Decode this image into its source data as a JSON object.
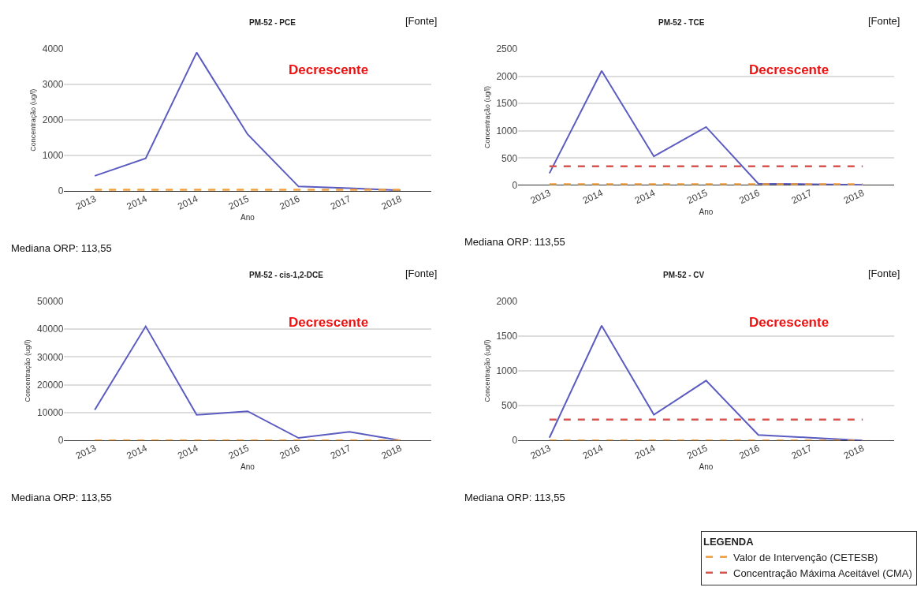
{
  "chart_data": [
    {
      "type": "line",
      "title": "PM-52 - PCE",
      "xlabel": "Ano",
      "ylabel": "Concentração (ug/l)",
      "categories": [
        "2013",
        "2014",
        "2014",
        "2015",
        "2016",
        "2017",
        "2018"
      ],
      "ylim": [
        0,
        4000
      ],
      "yticks": [
        0,
        1000,
        2000,
        3000,
        4000
      ],
      "grid": "y",
      "legend": false,
      "line_style": "solid",
      "marker": "none",
      "series": [
        {
          "color": "#5b5bc2",
          "values": [
            430,
            920,
            3900,
            1600,
            130,
            80,
            20
          ]
        },
        {
          "color": "#f0a040",
          "values": [
            40,
            40,
            40,
            40,
            40,
            40,
            40
          ],
          "line_style": "dashed"
        }
      ],
      "annotations": [
        "[Fonte]",
        "Decrescente",
        "Mediana ORP: 113,55"
      ]
    },
    {
      "type": "line",
      "title": "PM-52 - TCE",
      "xlabel": "Ano",
      "ylabel": "Concentração (ug/l)",
      "categories": [
        "2013",
        "2014",
        "2014",
        "2015",
        "2016",
        "2017",
        "2018"
      ],
      "ylim": [
        0,
        2500
      ],
      "yticks": [
        0,
        500,
        1000,
        1500,
        2000,
        2500
      ],
      "grid": "y",
      "legend": false,
      "line_style": "solid",
      "marker": "none",
      "series": [
        {
          "color": "#5b5bc2",
          "values": [
            220,
            2100,
            530,
            1070,
            30,
            20,
            10
          ]
        },
        {
          "color": "#f0a040",
          "values": [
            20,
            20,
            20,
            20,
            20,
            20,
            20
          ],
          "line_style": "dashed"
        },
        {
          "color": "#d9534f",
          "values": [
            350,
            350,
            350,
            350,
            350,
            350,
            350
          ],
          "line_style": "dashed"
        }
      ],
      "annotations": [
        "[Fonte]",
        "Decrescente",
        "Mediana ORP: 113,55"
      ]
    },
    {
      "type": "line",
      "title": "PM-52 - cis-1,2-DCE",
      "xlabel": "Ano",
      "ylabel": "Concentração (ug/l)",
      "categories": [
        "2013",
        "2014",
        "2014",
        "2015",
        "2016",
        "2017",
        "2018"
      ],
      "ylim": [
        0,
        50000
      ],
      "yticks": [
        0,
        10000,
        20000,
        30000,
        40000,
        50000
      ],
      "grid": "y",
      "legend": false,
      "line_style": "solid",
      "marker": "none",
      "series": [
        {
          "color": "#5b5bc2",
          "values": [
            11000,
            41000,
            9200,
            10500,
            900,
            3100,
            0
          ]
        },
        {
          "color": "#f0a040",
          "values": [
            0,
            0,
            0,
            0,
            0,
            0,
            0
          ],
          "line_style": "dashed"
        }
      ],
      "annotations": [
        "[Fonte]",
        "Decrescente",
        "Mediana ORP: 113,55"
      ]
    },
    {
      "type": "line",
      "title": "PM-52 - CV",
      "xlabel": "Ano",
      "ylabel": "Concentração (ug/l)",
      "categories": [
        "2013",
        "2014",
        "2014",
        "2015",
        "2016",
        "2017",
        "2018"
      ],
      "ylim": [
        0,
        2000
      ],
      "yticks": [
        0,
        500,
        1000,
        1500,
        2000
      ],
      "grid": "y",
      "legend": "bottom right",
      "legend_title": "LEGENDA",
      "line_style": "solid",
      "marker": "none",
      "series": [
        {
          "color": "#5b5bc2",
          "values": [
            40,
            1650,
            370,
            860,
            80,
            40,
            0
          ]
        },
        {
          "name": "Valor de Intervenção (CETESB)",
          "color": "#f0a040",
          "values": [
            0,
            0,
            0,
            0,
            0,
            0,
            0
          ],
          "line_style": "dashed"
        },
        {
          "name": "Concentração Máxima Aceitável (CMA)",
          "color": "#d9534f",
          "values": [
            300,
            300,
            300,
            300,
            300,
            300,
            300
          ],
          "line_style": "dashed"
        }
      ],
      "annotations": [
        "[Fonte]",
        "Decrescente",
        "Mediana ORP: 113,55"
      ]
    }
  ]
}
